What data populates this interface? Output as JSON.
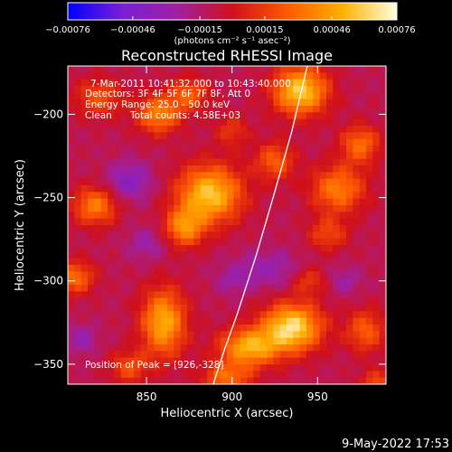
{
  "chart_data": {
    "type": "heatmap",
    "title": "Reconstructed RHESSI Image",
    "xlabel": "Heliocentric X (arcsec)",
    "ylabel": "Heliocentric Y (arcsec)",
    "xlim": [
      804,
      990
    ],
    "ylim": [
      -362,
      -171
    ],
    "x_ticks": [
      850,
      900,
      950
    ],
    "x_tick_labels": [
      "850",
      "900",
      "950"
    ],
    "y_ticks": [
      -200,
      -250,
      -300,
      -350
    ],
    "y_tick_labels": [
      "−200",
      "−250",
      "−300",
      "−350"
    ],
    "colorbar": {
      "min": -0.00076,
      "max": 0.00076,
      "ticks": [
        -0.00076,
        -0.00046,
        -0.00015,
        0.00015,
        0.00046,
        0.00076
      ],
      "tick_labels": [
        "−0.00076",
        "−0.00046",
        "−0.00015",
        "0.00015",
        "0.00046",
        "0.00076"
      ],
      "units": "(photons cm⁻² s⁻¹ asec⁻²)",
      "colors": [
        "#0000ff",
        "#7a1fd6",
        "#a020a0",
        "#d0101a",
        "#ff5a00",
        "#ffb000",
        "#ffffe0"
      ]
    },
    "grid": false,
    "annotations": {
      "time_range": "7-Mar-2011 10:41:32.000 to 10:43:40.000",
      "detectors": "Detectors: 3F 4F 5F 6F 7F 8F, Att 0",
      "energy_range": "Energy Range: 25.0 - 50.0 keV",
      "method": "Clean",
      "total_counts": "Total counts: 4.58E+03",
      "peak": "Position of Peak = [926,-328]"
    },
    "peak_position": [
      926,
      -328
    ],
    "sources": [
      {
        "x": 940,
        "y": -186,
        "amp": 0.0007,
        "sx": 11,
        "sy": 10
      },
      {
        "x": 935,
        "y": -328,
        "amp": 0.00076,
        "sx": 12,
        "sy": 10
      },
      {
        "x": 910,
        "y": -340,
        "amp": 0.0006,
        "sx": 12,
        "sy": 8
      },
      {
        "x": 887,
        "y": -248,
        "amp": 0.00068,
        "sx": 13,
        "sy": 12
      },
      {
        "x": 872,
        "y": -268,
        "amp": 0.00048,
        "sx": 8,
        "sy": 8
      },
      {
        "x": 860,
        "y": -325,
        "amp": 0.0006,
        "sx": 9,
        "sy": 14
      },
      {
        "x": 822,
        "y": -190,
        "amp": 0.0003,
        "sx": 10,
        "sy": 8
      },
      {
        "x": 857,
        "y": -200,
        "amp": 0.00048,
        "sx": 9,
        "sy": 8
      },
      {
        "x": 875,
        "y": -188,
        "amp": 0.00035,
        "sx": 8,
        "sy": 7
      },
      {
        "x": 820,
        "y": -255,
        "amp": 0.00045,
        "sx": 9,
        "sy": 8
      },
      {
        "x": 808,
        "y": -298,
        "amp": 0.0004,
        "sx": 8,
        "sy": 7
      },
      {
        "x": 962,
        "y": -245,
        "amp": 0.00045,
        "sx": 11,
        "sy": 10
      },
      {
        "x": 975,
        "y": -218,
        "amp": 0.0004,
        "sx": 8,
        "sy": 8
      },
      {
        "x": 978,
        "y": -330,
        "amp": 0.00035,
        "sx": 8,
        "sy": 9
      },
      {
        "x": 985,
        "y": -362,
        "amp": 0.0003,
        "sx": 7,
        "sy": 6
      },
      {
        "x": 925,
        "y": -228,
        "amp": 0.00035,
        "sx": 8,
        "sy": 8
      },
      {
        "x": 897,
        "y": -358,
        "amp": 0.0004,
        "sx": 10,
        "sy": 6
      },
      {
        "x": 840,
        "y": -352,
        "amp": 0.0003,
        "sx": 8,
        "sy": 7
      },
      {
        "x": 956,
        "y": -272,
        "amp": 0.00028,
        "sx": 8,
        "sy": 7
      },
      {
        "x": 945,
        "y": -300,
        "amp": 0.00025,
        "sx": 7,
        "sy": 6
      },
      {
        "x": 900,
        "y": -210,
        "amp": 0.00022,
        "sx": 7,
        "sy": 7
      },
      {
        "x": 840,
        "y": -240,
        "amp": -0.0003,
        "sx": 9,
        "sy": 8
      },
      {
        "x": 850,
        "y": -278,
        "amp": -0.00018,
        "sx": 8,
        "sy": 7
      },
      {
        "x": 921,
        "y": -293,
        "amp": -0.0002,
        "sx": 14,
        "sy": 8
      },
      {
        "x": 966,
        "y": -300,
        "amp": -0.00016,
        "sx": 7,
        "sy": 6
      },
      {
        "x": 812,
        "y": -335,
        "amp": -0.00022,
        "sx": 6,
        "sy": 6
      },
      {
        "x": 900,
        "y": -300,
        "amp": -0.00014,
        "sx": 7,
        "sy": 6
      }
    ],
    "limb": [
      [
        944,
        -171
      ],
      [
        935,
        -210
      ],
      [
        924,
        -250
      ],
      [
        914,
        -285
      ],
      [
        903,
        -320
      ],
      [
        896,
        -340
      ],
      [
        889,
        -362
      ]
    ]
  },
  "footer": {
    "date": "9-May-2022 17:53"
  }
}
